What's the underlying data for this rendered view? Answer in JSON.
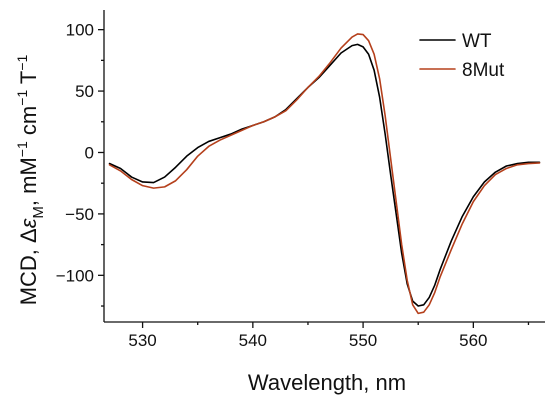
{
  "chart_data": {
    "type": "line",
    "xlabel": "Wavelength, nm",
    "ylabel_parts": {
      "prefix": "MCD, Δ",
      "epsilon": "ε",
      "sub": "M",
      "units_a": ", mM",
      "sup1": "−1",
      "units_b": " cm",
      "sup2": "−1",
      "units_c": " T",
      "sup3": "−1"
    },
    "xlim": [
      526.5,
      566.5
    ],
    "ylim": [
      -138,
      116
    ],
    "x_ticks": [
      530,
      540,
      550,
      560
    ],
    "x_tick_labels": [
      "530",
      "540",
      "550",
      "560"
    ],
    "y_ticks": [
      100,
      50,
      0,
      -50,
      -100
    ],
    "y_tick_labels": [
      "100",
      "50",
      "0",
      "−50",
      "−100"
    ],
    "legend_position": "top-right",
    "grid": false,
    "series": [
      {
        "name": "WT",
        "color": "#000000",
        "x": [
          527,
          528,
          529,
          530,
          531,
          532,
          533,
          534,
          535,
          536,
          537,
          538,
          539,
          540,
          541,
          542,
          543,
          544,
          545,
          546,
          547,
          548,
          549,
          549.5,
          550,
          550.5,
          551,
          551.5,
          552,
          552.5,
          553,
          553.5,
          554,
          554.5,
          555,
          555.5,
          556,
          556.5,
          557,
          558,
          559,
          560,
          561,
          562,
          563,
          564,
          565,
          566
        ],
        "y": [
          -9,
          -13,
          -20,
          -24,
          -24.5,
          -20,
          -12,
          -3,
          4,
          9,
          12,
          15,
          19,
          22,
          25,
          29,
          35,
          44,
          53,
          61,
          71,
          81,
          87,
          88,
          86,
          80,
          67,
          45,
          15,
          -18,
          -50,
          -82,
          -107,
          -121,
          -125,
          -124,
          -118,
          -108,
          -95,
          -72,
          -52,
          -36,
          -24,
          -16,
          -11,
          -9,
          -8,
          -8
        ]
      },
      {
        "name": "8Mut",
        "color": "#b5401c",
        "x": [
          527,
          528,
          529,
          530,
          531,
          532,
          533,
          534,
          535,
          536,
          537,
          538,
          539,
          540,
          541,
          542,
          543,
          544,
          545,
          546,
          547,
          548,
          549,
          549.5,
          550,
          550.5,
          551,
          551.5,
          552,
          552.5,
          553,
          553.5,
          554,
          554.5,
          555,
          555.5,
          556,
          556.5,
          557,
          558,
          559,
          560,
          561,
          562,
          563,
          564,
          565,
          566
        ],
        "y": [
          -10,
          -15,
          -22,
          -27,
          -29,
          -28,
          -23,
          -14,
          -3,
          5,
          10,
          14,
          18,
          22,
          25,
          29,
          34,
          43,
          53,
          62,
          73,
          85,
          94,
          96.5,
          96,
          91,
          80,
          60,
          30,
          -5,
          -40,
          -75,
          -104,
          -124,
          -131,
          -130,
          -124,
          -114,
          -101,
          -79,
          -58,
          -40,
          -27,
          -18,
          -13,
          -10,
          -9,
          -8.5
        ]
      }
    ]
  }
}
